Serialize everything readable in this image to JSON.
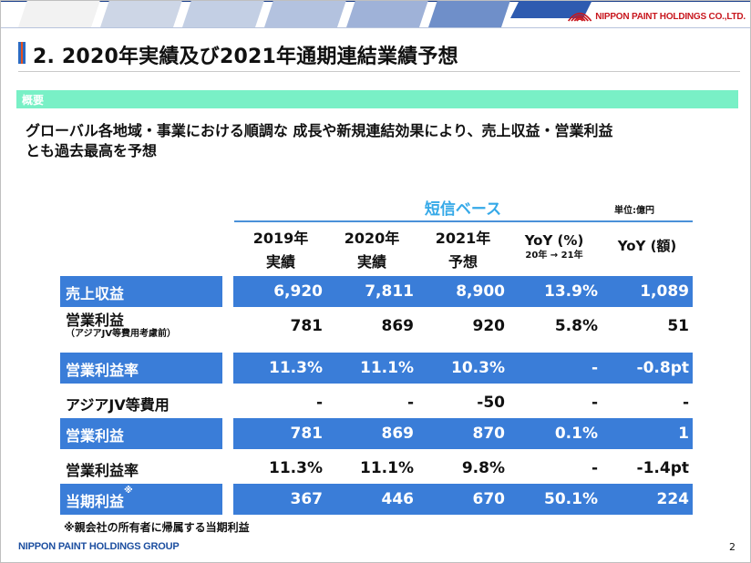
{
  "header": {
    "company_logo_text": "NIPPON PAINT HOLDINGS CO.,LTD."
  },
  "title": "2. 2020年実績及び2021年通期連結業績予想",
  "section_label": "概要",
  "summary_lines": [
    "グローバル各地域・事業における順調な 成長や新規連結効果により、売上収益・営業利益",
    "とも過去最高を予想"
  ],
  "table": {
    "basis_label": "短信ベース",
    "unit_label": "単位:億円",
    "columns": [
      {
        "line1": "2019年",
        "line2": "実績"
      },
      {
        "line1": "2020年",
        "line2": "実績"
      },
      {
        "line1": "2021年",
        "line2": "予想"
      },
      {
        "line1": "YoY (%)",
        "line2": "20年 → 21年"
      },
      {
        "line1": "YoY (額)",
        "line2": ""
      }
    ],
    "rows": [
      {
        "label": "売上収益",
        "note": "",
        "values": [
          "6,920",
          "7,811",
          "8,900",
          "13.9%",
          "1,089"
        ]
      },
      {
        "label": "営業利益",
        "note": "（アジアJV等費用考慮前）",
        "values": [
          "781",
          "869",
          "920",
          "5.8%",
          "51"
        ]
      },
      {
        "label": "営業利益率",
        "note": "",
        "values": [
          "11.3%",
          "11.1%",
          "10.3%",
          "-",
          "-0.8pt"
        ]
      },
      {
        "label": "アジアJV等費用",
        "note": "",
        "values": [
          "-",
          "-",
          "-50",
          "-",
          "-"
        ]
      },
      {
        "label": "営業利益",
        "note": "",
        "values": [
          "781",
          "869",
          "870",
          "0.1%",
          "1"
        ]
      },
      {
        "label": "営業利益率",
        "note": "",
        "values": [
          "11.3%",
          "11.1%",
          "9.8%",
          "-",
          "-1.4pt"
        ]
      },
      {
        "label": "当期利益",
        "note": "",
        "footnote_mark": "※",
        "values": [
          "367",
          "446",
          "670",
          "50.1%",
          "224"
        ]
      }
    ]
  },
  "footnote": "※親会社の所有者に帰属する当期利益",
  "footer": {
    "brand": "NIPPON PAINT HOLDINGS GROUP",
    "page_number": "2"
  },
  "colors": {
    "row_highlight": "#3a7dd8",
    "section_band": "#79f0c6",
    "basis_label": "#35a9e8",
    "brand_red": "#c8161d",
    "brand_blue": "#1d4fa0"
  }
}
